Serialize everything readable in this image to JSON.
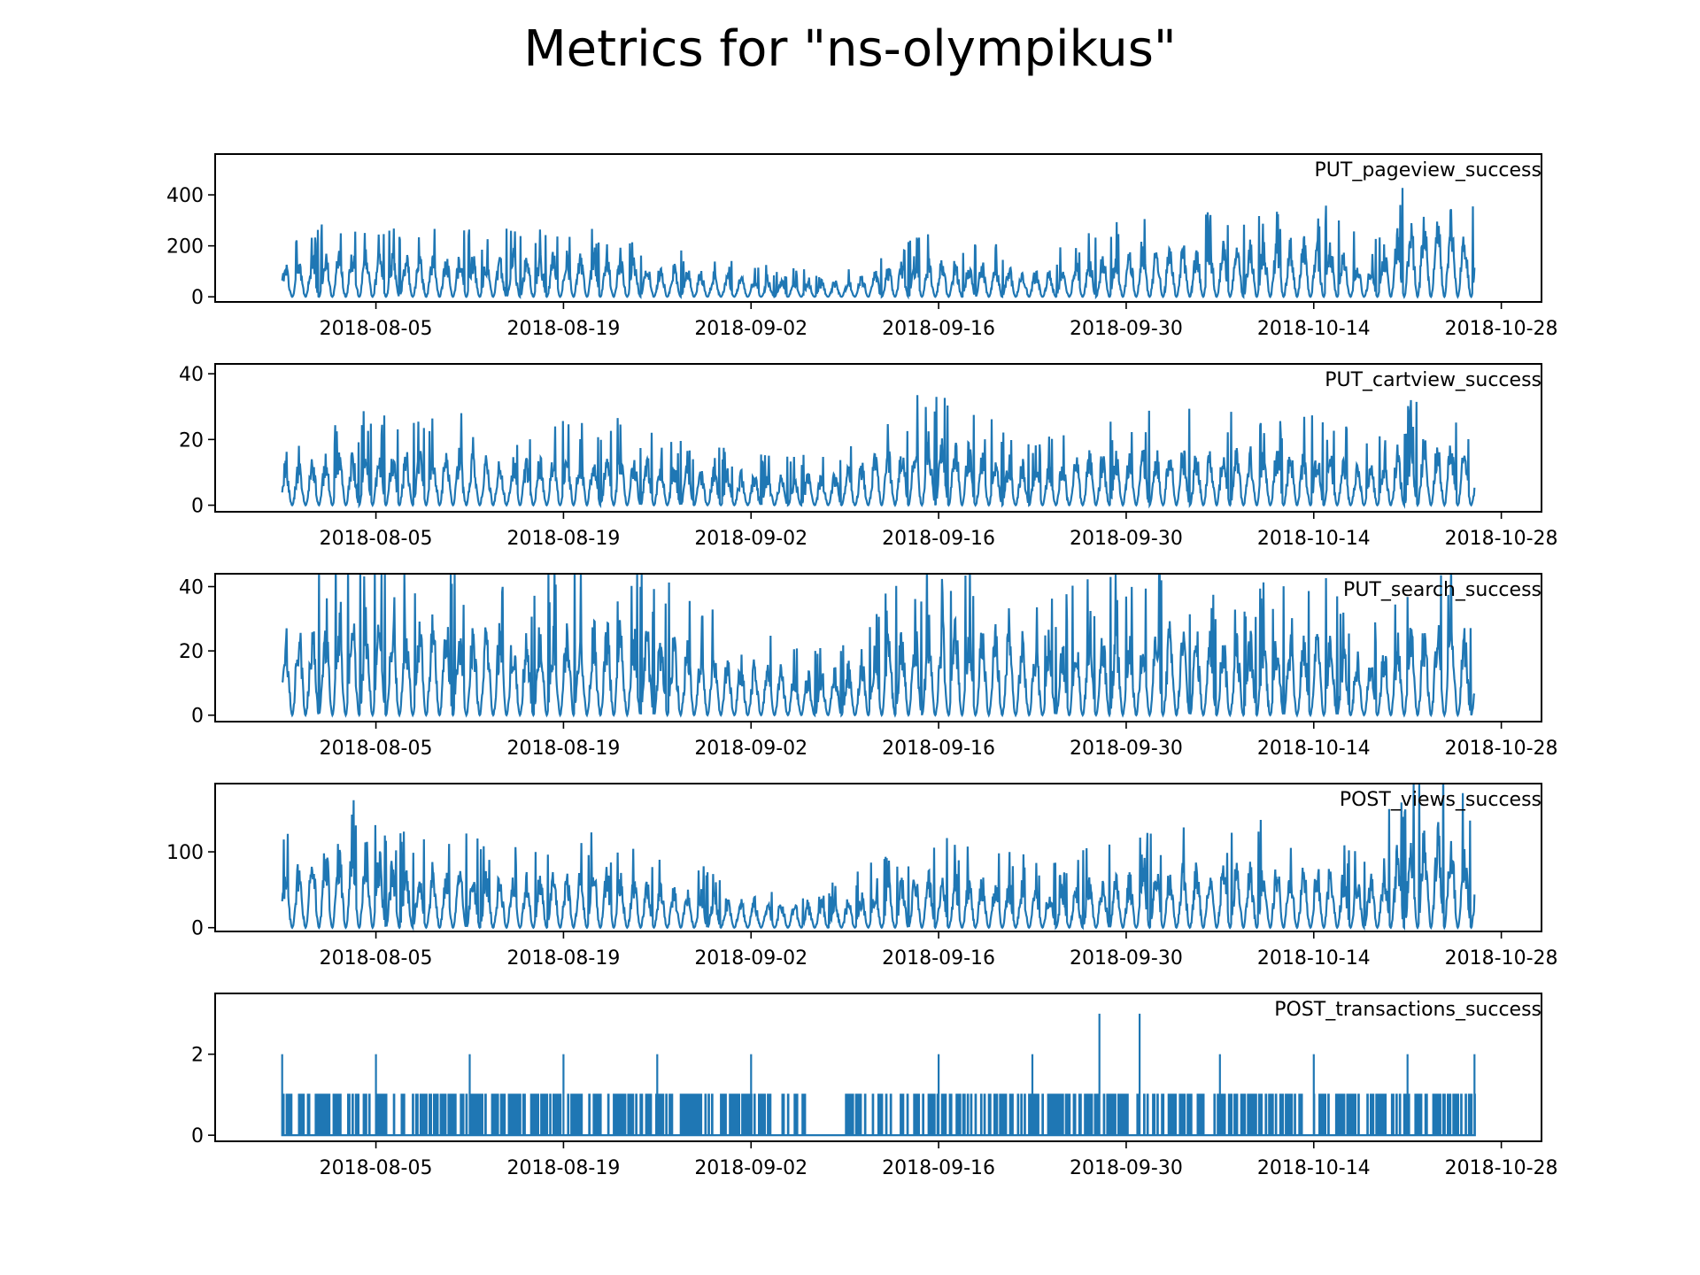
{
  "figure": {
    "title": "Metrics for \"ns-olympikus\""
  },
  "chart_data": [
    {
      "type": "line",
      "title": "PUT_pageview_success",
      "color": "#1f77b4",
      "x_range": [
        "2018-07-24",
        "2018-10-31"
      ],
      "x_ticks": [
        "2018-08-05",
        "2018-08-19",
        "2018-09-02",
        "2018-09-16",
        "2018-09-30",
        "2018-10-14",
        "2018-10-28"
      ],
      "ylim": [
        -20,
        560
      ],
      "y_ticks": [
        0,
        200,
        400
      ],
      "x": [
        "2018-07-29",
        "2018-08-01",
        "2018-08-04",
        "2018-08-07",
        "2018-08-10",
        "2018-08-13",
        "2018-08-16",
        "2018-08-19",
        "2018-08-22",
        "2018-08-25",
        "2018-08-28",
        "2018-08-31",
        "2018-09-03",
        "2018-09-06",
        "2018-09-09",
        "2018-09-12",
        "2018-09-15",
        "2018-09-18",
        "2018-09-21",
        "2018-09-24",
        "2018-09-27",
        "2018-09-30",
        "2018-10-03",
        "2018-10-06",
        "2018-10-09",
        "2018-10-12",
        "2018-10-15",
        "2018-10-18",
        "2018-10-21",
        "2018-10-24",
        "2018-10-26"
      ],
      "values": [
        120,
        160,
        170,
        160,
        150,
        150,
        150,
        160,
        160,
        130,
        110,
        80,
        70,
        60,
        60,
        110,
        140,
        130,
        120,
        90,
        140,
        170,
        190,
        190,
        200,
        210,
        210,
        110,
        280,
        320,
        230
      ]
    },
    {
      "type": "line",
      "title": "PUT_cartview_success",
      "color": "#1f77b4",
      "x_range": [
        "2018-07-24",
        "2018-10-31"
      ],
      "x_ticks": [
        "2018-08-05",
        "2018-08-19",
        "2018-09-02",
        "2018-09-16",
        "2018-09-30",
        "2018-10-14",
        "2018-10-28"
      ],
      "ylim": [
        -2,
        43
      ],
      "y_ticks": [
        0,
        20,
        40
      ],
      "x": [
        "2018-07-29",
        "2018-08-01",
        "2018-08-04",
        "2018-08-07",
        "2018-08-10",
        "2018-08-13",
        "2018-08-16",
        "2018-08-19",
        "2018-08-22",
        "2018-08-25",
        "2018-08-28",
        "2018-08-31",
        "2018-09-03",
        "2018-09-06",
        "2018-09-09",
        "2018-09-12",
        "2018-09-15",
        "2018-09-18",
        "2018-09-21",
        "2018-09-24",
        "2018-09-27",
        "2018-09-30",
        "2018-10-03",
        "2018-10-06",
        "2018-10-09",
        "2018-10-12",
        "2018-10-15",
        "2018-10-18",
        "2018-10-21",
        "2018-10-24",
        "2018-10-26"
      ],
      "values": [
        12,
        14,
        16,
        15,
        17,
        14,
        13,
        15,
        16,
        14,
        12,
        10,
        9,
        9,
        10,
        16,
        20,
        18,
        14,
        12,
        15,
        16,
        17,
        16,
        16,
        17,
        15,
        12,
        18,
        20,
        14
      ]
    },
    {
      "type": "line",
      "title": "PUT_search_success",
      "color": "#1f77b4",
      "x_range": [
        "2018-07-24",
        "2018-10-31"
      ],
      "x_ticks": [
        "2018-08-05",
        "2018-08-19",
        "2018-09-02",
        "2018-09-16",
        "2018-09-30",
        "2018-10-14",
        "2018-10-28"
      ],
      "ylim": [
        -2,
        44
      ],
      "y_ticks": [
        0,
        20,
        40
      ],
      "x": [
        "2018-07-29",
        "2018-08-01",
        "2018-08-04",
        "2018-08-07",
        "2018-08-10",
        "2018-08-13",
        "2018-08-16",
        "2018-08-19",
        "2018-08-22",
        "2018-08-25",
        "2018-08-28",
        "2018-08-31",
        "2018-09-03",
        "2018-09-06",
        "2018-09-09",
        "2018-09-12",
        "2018-09-15",
        "2018-09-18",
        "2018-09-21",
        "2018-09-24",
        "2018-09-27",
        "2018-09-30",
        "2018-10-03",
        "2018-10-06",
        "2018-10-09",
        "2018-10-12",
        "2018-10-15",
        "2018-10-18",
        "2018-10-21",
        "2018-10-24",
        "2018-10-26"
      ],
      "values": [
        25,
        28,
        30,
        27,
        29,
        26,
        25,
        27,
        28,
        25,
        22,
        18,
        15,
        13,
        14,
        24,
        28,
        27,
        25,
        20,
        24,
        25,
        26,
        24,
        24,
        25,
        24,
        16,
        26,
        28,
        21
      ]
    },
    {
      "type": "line",
      "title": "POST_views_success",
      "color": "#1f77b4",
      "x_range": [
        "2018-07-24",
        "2018-10-31"
      ],
      "x_ticks": [
        "2018-08-05",
        "2018-08-19",
        "2018-09-02",
        "2018-09-16",
        "2018-09-30",
        "2018-10-14",
        "2018-10-28"
      ],
      "ylim": [
        -5,
        190
      ],
      "y_ticks": [
        0,
        100
      ],
      "x": [
        "2018-07-29",
        "2018-08-01",
        "2018-08-04",
        "2018-08-07",
        "2018-08-10",
        "2018-08-13",
        "2018-08-16",
        "2018-08-19",
        "2018-08-22",
        "2018-08-25",
        "2018-08-28",
        "2018-08-31",
        "2018-09-03",
        "2018-09-06",
        "2018-09-09",
        "2018-09-12",
        "2018-09-15",
        "2018-09-18",
        "2018-09-21",
        "2018-09-24",
        "2018-09-27",
        "2018-09-30",
        "2018-10-03",
        "2018-10-06",
        "2018-10-09",
        "2018-10-12",
        "2018-10-15",
        "2018-10-18",
        "2018-10-21",
        "2018-10-24",
        "2018-10-26"
      ],
      "values": [
        70,
        100,
        110,
        75,
        70,
        70,
        65,
        70,
        72,
        60,
        50,
        40,
        35,
        30,
        35,
        55,
        70,
        65,
        60,
        50,
        60,
        65,
        75,
        80,
        80,
        82,
        80,
        60,
        110,
        130,
        95
      ]
    },
    {
      "type": "line",
      "title": "POST_transactions_success",
      "color": "#1f77b4",
      "x_range": [
        "2018-07-24",
        "2018-10-31"
      ],
      "x_ticks": [
        "2018-08-05",
        "2018-08-19",
        "2018-09-02",
        "2018-09-16",
        "2018-09-30",
        "2018-10-14",
        "2018-10-28"
      ],
      "ylim": [
        -0.15,
        3.5
      ],
      "y_ticks": [
        0,
        2
      ],
      "x": [
        "2018-07-29",
        "2018-08-05",
        "2018-08-12",
        "2018-08-19",
        "2018-08-26",
        "2018-09-02",
        "2018-09-09",
        "2018-09-16",
        "2018-09-23",
        "2018-09-28",
        "2018-10-01",
        "2018-10-07",
        "2018-10-14",
        "2018-10-21",
        "2018-10-26"
      ],
      "values": [
        2,
        2,
        2,
        2,
        2,
        2,
        0,
        2,
        2,
        3,
        3,
        2,
        2,
        2,
        2
      ]
    }
  ]
}
